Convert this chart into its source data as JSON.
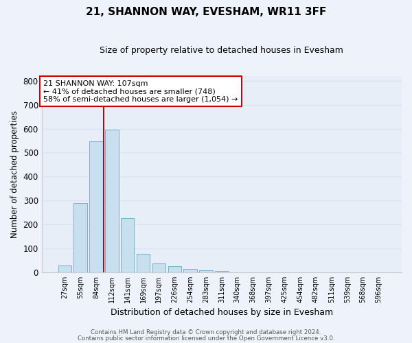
{
  "title": "21, SHANNON WAY, EVESHAM, WR11 3FF",
  "subtitle": "Size of property relative to detached houses in Evesham",
  "xlabel": "Distribution of detached houses by size in Evesham",
  "ylabel": "Number of detached properties",
  "bar_labels": [
    "27sqm",
    "55sqm",
    "84sqm",
    "112sqm",
    "141sqm",
    "169sqm",
    "197sqm",
    "226sqm",
    "254sqm",
    "283sqm",
    "311sqm",
    "340sqm",
    "368sqm",
    "397sqm",
    "425sqm",
    "454sqm",
    "482sqm",
    "511sqm",
    "539sqm",
    "568sqm",
    "596sqm"
  ],
  "bar_values": [
    28,
    290,
    548,
    595,
    225,
    78,
    38,
    25,
    13,
    8,
    5,
    0,
    0,
    0,
    0,
    0,
    0,
    0,
    0,
    0,
    0
  ],
  "bar_color": "#c8dff0",
  "bar_edge_color": "#7ab0cc",
  "vline_x": 2.5,
  "vline_color": "#cc0000",
  "annotation_text": "21 SHANNON WAY: 107sqm\n← 41% of detached houses are smaller (748)\n58% of semi-detached houses are larger (1,054) →",
  "annotation_box_color": "#ffffff",
  "annotation_box_edge": "#cc0000",
  "ylim": [
    0,
    820
  ],
  "yticks": [
    0,
    100,
    200,
    300,
    400,
    500,
    600,
    700,
    800
  ],
  "footer_line1": "Contains HM Land Registry data © Crown copyright and database right 2024.",
  "footer_line2": "Contains public sector information licensed under the Open Government Licence v3.0.",
  "background_color": "#eef2fa",
  "grid_color": "#d8e4f0",
  "plot_bg_color": "#e8eef8"
}
